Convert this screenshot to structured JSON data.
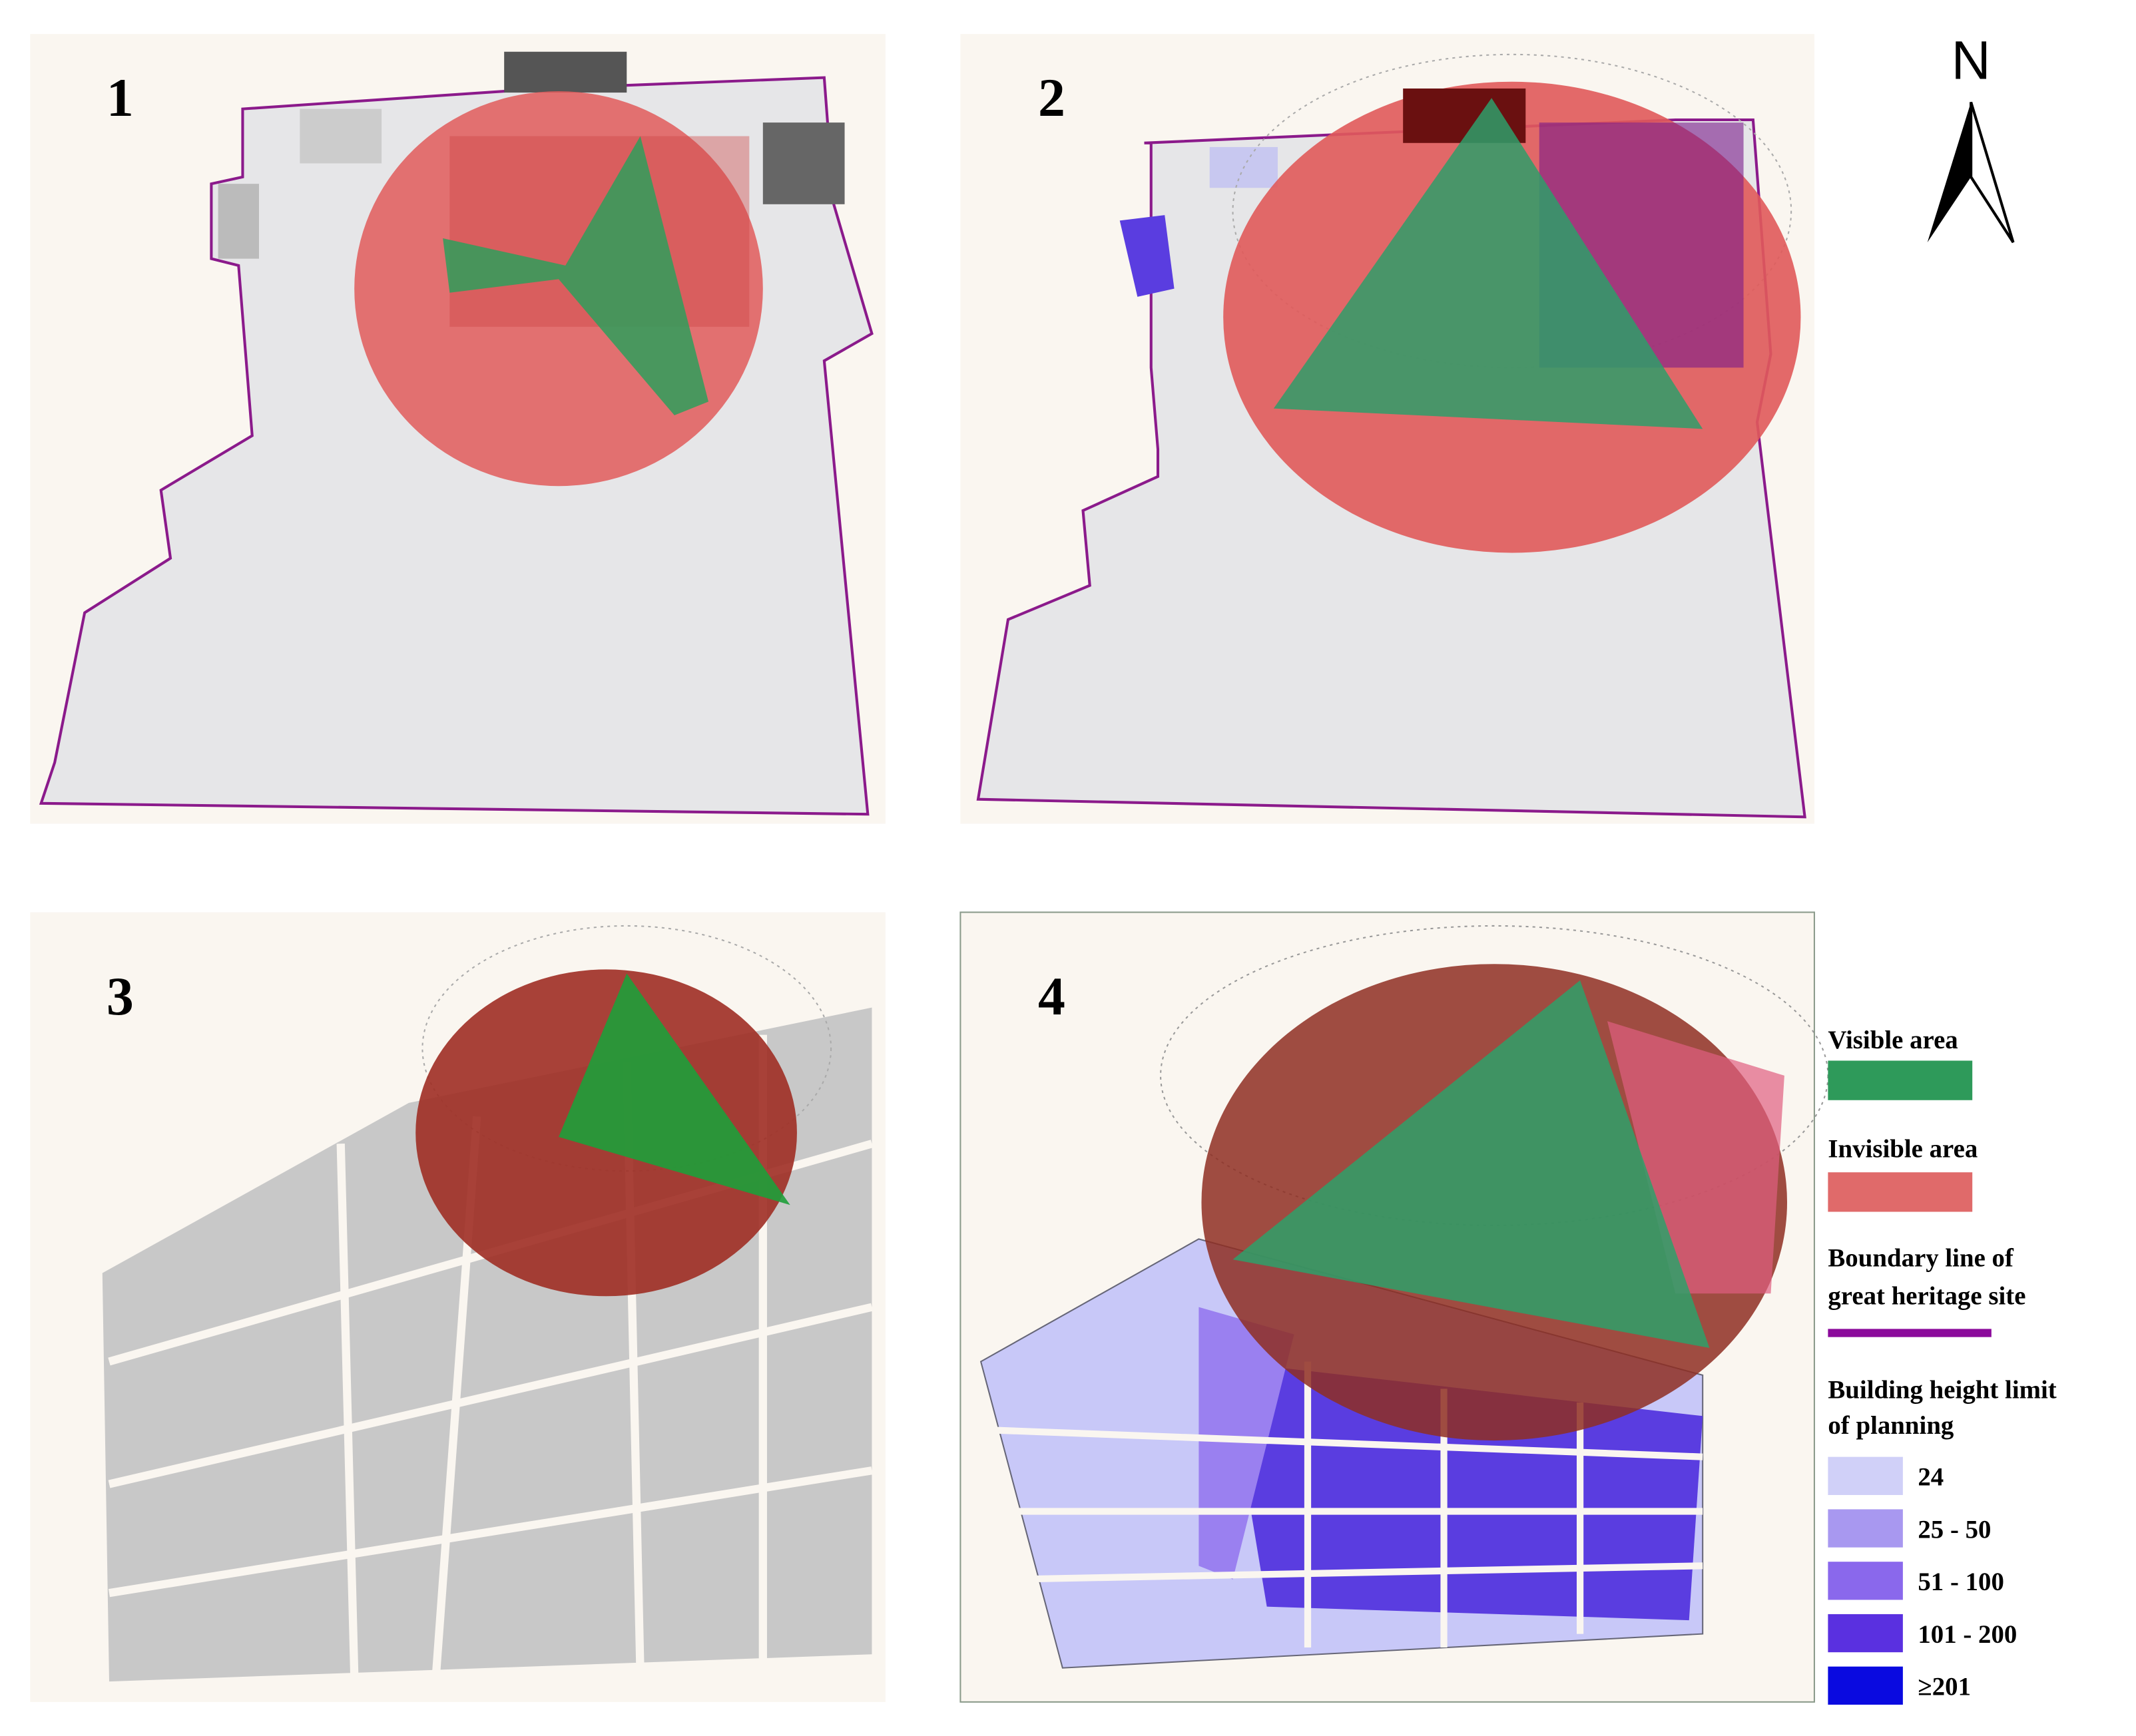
{
  "panels": [
    {
      "label": "1"
    },
    {
      "label": "2"
    },
    {
      "label": "3"
    },
    {
      "label": "4"
    }
  ],
  "north": "N",
  "legend": {
    "visible": "Visible area",
    "invisible": "Invisible area",
    "boundary": [
      "Boundary line of",
      "great heritage site"
    ],
    "height_title": [
      "Building height limit",
      "of planning"
    ],
    "height_classes": [
      "24",
      "25 - 50",
      "51 - 100",
      "101 - 200",
      "≥201"
    ]
  }
}
